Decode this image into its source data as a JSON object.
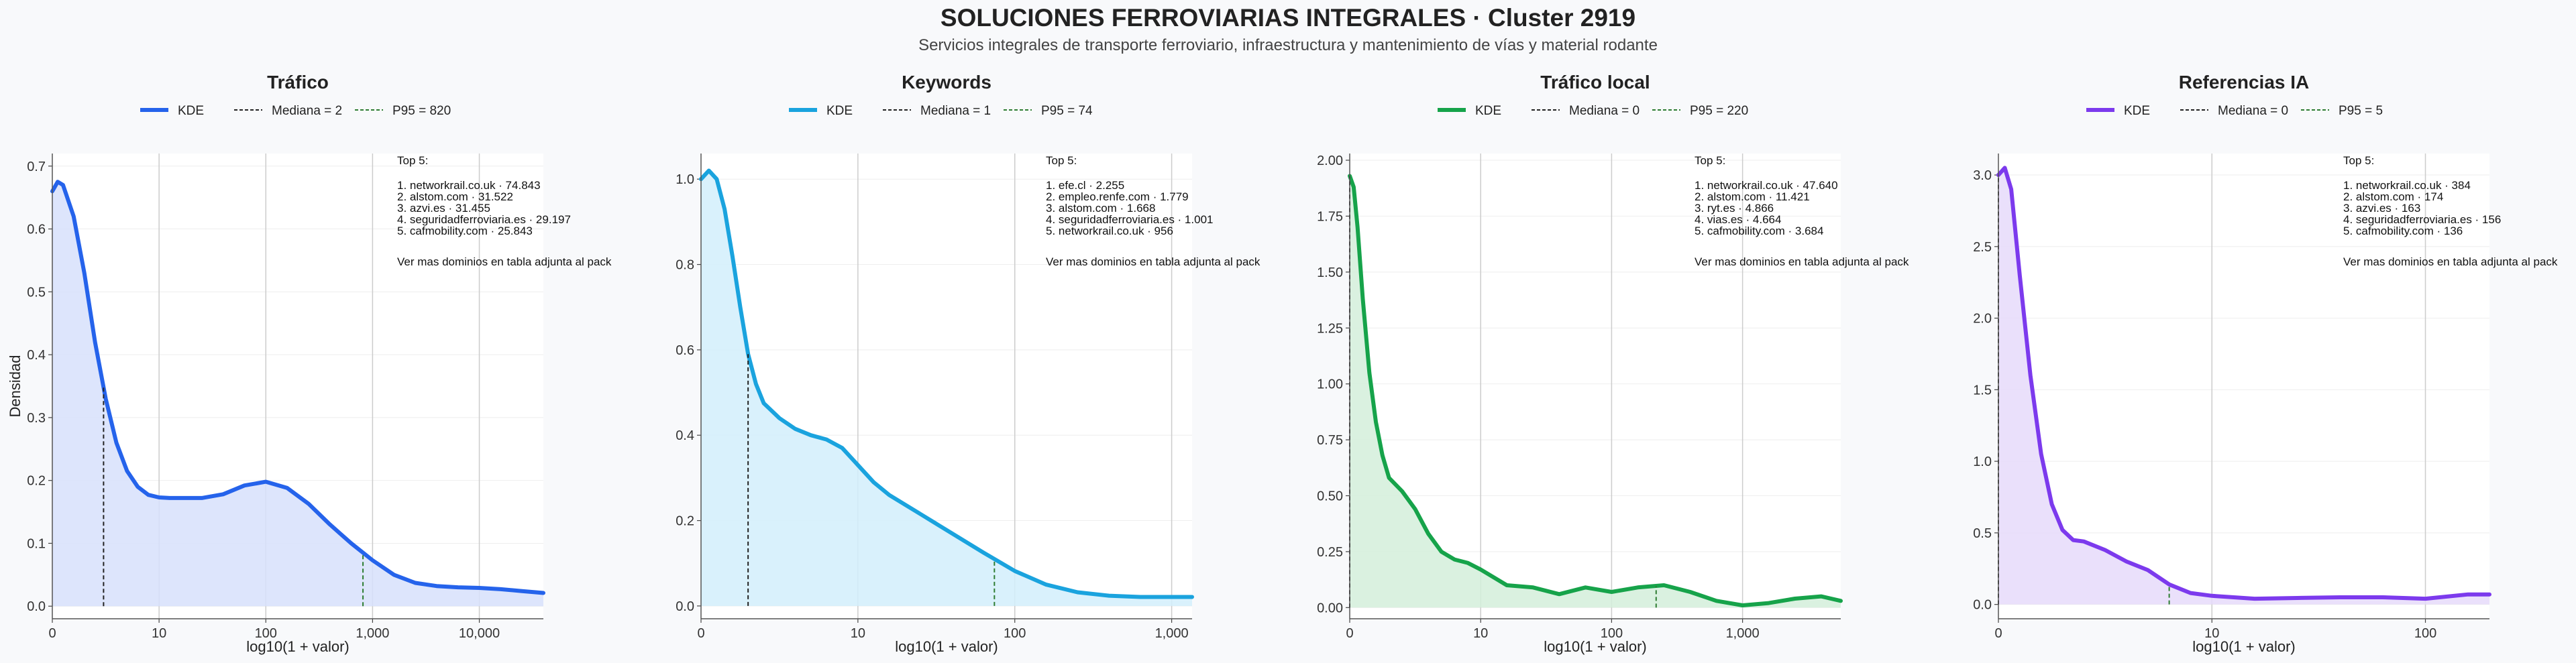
{
  "header": {
    "title": "SOLUCIONES FERROVIARIAS INTEGRALES · Cluster 2919",
    "subtitle": "Servicios integrales de transporte ferroviario, infraestructura y mantenimiento de vías y material rodante"
  },
  "colors": {
    "background": "#f8f9fb",
    "median_line": "#222222",
    "p95_line": "#2e7d32"
  },
  "chart_data": [
    {
      "type": "area",
      "title": "Tráfico",
      "xlabel": "log10(1 + valor)",
      "ylabel": "Densidad",
      "color": "#2563eb",
      "fill": "#d7e1fb",
      "log_x_ticks": [
        "0",
        "10",
        "100",
        "1,000",
        "10,000"
      ],
      "xlim": [
        0,
        4.6
      ],
      "yticks": [
        "0.0",
        "0.1",
        "0.2",
        "0.3",
        "0.4",
        "0.5",
        "0.6",
        "0.7"
      ],
      "ylim": [
        -0.02,
        0.72
      ],
      "legend": [
        {
          "label": "KDE"
        },
        {
          "label": "Mediana = 2"
        },
        {
          "label": "P95 = 820"
        }
      ],
      "median_x": 0.48,
      "p95_x": 2.91,
      "series": [
        {
          "name": "KDE",
          "x": [
            0,
            0.05,
            0.1,
            0.2,
            0.3,
            0.4,
            0.5,
            0.6,
            0.7,
            0.8,
            0.9,
            1.0,
            1.1,
            1.2,
            1.4,
            1.6,
            1.8,
            2.0,
            2.2,
            2.4,
            2.6,
            2.8,
            3.0,
            3.2,
            3.4,
            3.6,
            3.8,
            4.0,
            4.2,
            4.4,
            4.6
          ],
          "y": [
            0.66,
            0.675,
            0.67,
            0.62,
            0.53,
            0.42,
            0.33,
            0.26,
            0.215,
            0.19,
            0.177,
            0.173,
            0.172,
            0.172,
            0.172,
            0.178,
            0.192,
            0.198,
            0.188,
            0.163,
            0.13,
            0.1,
            0.073,
            0.05,
            0.037,
            0.032,
            0.03,
            0.029,
            0.027,
            0.024,
            0.021
          ]
        }
      ],
      "top5": {
        "heading": "Top 5:",
        "items": [
          "1. networkrail.co.uk · 74.843",
          "2. alstom.com · 31.522",
          "3. azvi.es · 31.455",
          "4. seguridadferroviaria.es · 29.197",
          "5. cafmobility.com · 25.843"
        ],
        "note": "Ver mas dominios en tabla adjunta al pack"
      }
    },
    {
      "type": "area",
      "title": "Keywords",
      "xlabel": "log10(1 + valor)",
      "ylabel": "",
      "color": "#1aa3de",
      "fill": "#d2eefb",
      "log_x_ticks": [
        "0",
        "10",
        "100",
        "1,000"
      ],
      "xlim": [
        0,
        3.13
      ],
      "yticks": [
        "0.0",
        "0.2",
        "0.4",
        "0.6",
        "0.8",
        "1.0"
      ],
      "ylim": [
        -0.03,
        1.06
      ],
      "legend": [
        {
          "label": "KDE"
        },
        {
          "label": "Mediana = 1"
        },
        {
          "label": "P95 = 74"
        }
      ],
      "median_x": 0.3,
      "p95_x": 1.87,
      "series": [
        {
          "name": "KDE",
          "x": [
            0,
            0.05,
            0.1,
            0.15,
            0.2,
            0.25,
            0.3,
            0.35,
            0.4,
            0.5,
            0.6,
            0.7,
            0.8,
            0.9,
            1.0,
            1.1,
            1.2,
            1.4,
            1.6,
            1.8,
            2.0,
            2.2,
            2.4,
            2.6,
            2.8,
            3.0,
            3.13
          ],
          "y": [
            1.0,
            1.02,
            1.0,
            0.93,
            0.82,
            0.7,
            0.59,
            0.52,
            0.475,
            0.44,
            0.415,
            0.4,
            0.39,
            0.37,
            0.33,
            0.29,
            0.26,
            0.215,
            0.17,
            0.125,
            0.082,
            0.05,
            0.032,
            0.024,
            0.021,
            0.021,
            0.021
          ]
        }
      ],
      "top5": {
        "heading": "Top 5:",
        "items": [
          "1. efe.cl · 2.255",
          "2. empleo.renfe.com · 1.779",
          "3. alstom.com · 1.668",
          "4. seguridadferroviaria.es · 1.001",
          "5. networkrail.co.uk · 956"
        ],
        "note": "Ver mas dominios en tabla adjunta al pack"
      }
    },
    {
      "type": "area",
      "title": "Tráfico local",
      "xlabel": "log10(1 + valor)",
      "ylabel": "",
      "color": "#16a34a",
      "fill": "#d3eedb",
      "log_x_ticks": [
        "0",
        "10",
        "100",
        "1,000"
      ],
      "xlim": [
        0,
        3.75
      ],
      "yticks": [
        "0.00",
        "0.25",
        "0.50",
        "0.75",
        "1.00",
        "1.25",
        "1.50",
        "1.75",
        "2.00"
      ],
      "ylim": [
        -0.05,
        2.03
      ],
      "legend": [
        {
          "label": "KDE"
        },
        {
          "label": "Mediana = 0"
        },
        {
          "label": "P95 = 220"
        }
      ],
      "median_x": 0,
      "p95_x": 2.34,
      "series": [
        {
          "name": "KDE",
          "x": [
            0,
            0.03,
            0.06,
            0.1,
            0.15,
            0.2,
            0.25,
            0.3,
            0.4,
            0.5,
            0.6,
            0.7,
            0.8,
            0.9,
            1.0,
            1.2,
            1.4,
            1.6,
            1.8,
            2.0,
            2.2,
            2.4,
            2.6,
            2.8,
            3.0,
            3.2,
            3.4,
            3.6,
            3.75
          ],
          "y": [
            1.93,
            1.88,
            1.7,
            1.38,
            1.05,
            0.83,
            0.68,
            0.58,
            0.52,
            0.44,
            0.33,
            0.25,
            0.215,
            0.2,
            0.17,
            0.1,
            0.09,
            0.06,
            0.09,
            0.07,
            0.09,
            0.1,
            0.07,
            0.03,
            0.01,
            0.02,
            0.04,
            0.05,
            0.03
          ]
        }
      ],
      "top5": {
        "heading": "Top 5:",
        "items": [
          "1. networkrail.co.uk · 47.640",
          "2. alstom.com · 11.421",
          "3. ryt.es · 4.866",
          "4. vias.es · 4.664",
          "5. cafmobility.com · 3.684"
        ],
        "note": "Ver mas dominios en tabla adjunta al pack"
      }
    },
    {
      "type": "area",
      "title": "Referencias IA",
      "xlabel": "log10(1 + valor)",
      "ylabel": "",
      "color": "#7c3aed",
      "fill": "#e6dbfa",
      "log_x_ticks": [
        "0",
        "10",
        "100"
      ],
      "xlim": [
        0,
        2.3
      ],
      "yticks": [
        "0.0",
        "0.5",
        "1.0",
        "1.5",
        "2.0",
        "2.5",
        "3.0"
      ],
      "ylim": [
        -0.1,
        3.15
      ],
      "legend": [
        {
          "label": "KDE"
        },
        {
          "label": "Mediana = 0"
        },
        {
          "label": "P95 = 5"
        }
      ],
      "median_x": 0,
      "p95_x": 0.8,
      "series": [
        {
          "name": "KDE",
          "x": [
            0,
            0.03,
            0.06,
            0.1,
            0.15,
            0.2,
            0.25,
            0.3,
            0.35,
            0.4,
            0.5,
            0.6,
            0.7,
            0.8,
            0.9,
            1.0,
            1.2,
            1.4,
            1.6,
            1.8,
            2.0,
            2.2,
            2.3
          ],
          "y": [
            3.0,
            3.05,
            2.9,
            2.3,
            1.6,
            1.05,
            0.7,
            0.52,
            0.45,
            0.44,
            0.38,
            0.3,
            0.24,
            0.14,
            0.08,
            0.06,
            0.04,
            0.045,
            0.05,
            0.05,
            0.04,
            0.07,
            0.07
          ]
        }
      ],
      "top5": {
        "heading": "Top 5:",
        "items": [
          "1. networkrail.co.uk · 384",
          "2. alstom.com · 174",
          "3. azvi.es · 163",
          "4. seguridadferroviaria.es · 156",
          "5. cafmobility.com · 136"
        ],
        "note": "Ver mas dominios en tabla adjunta al pack"
      }
    }
  ]
}
